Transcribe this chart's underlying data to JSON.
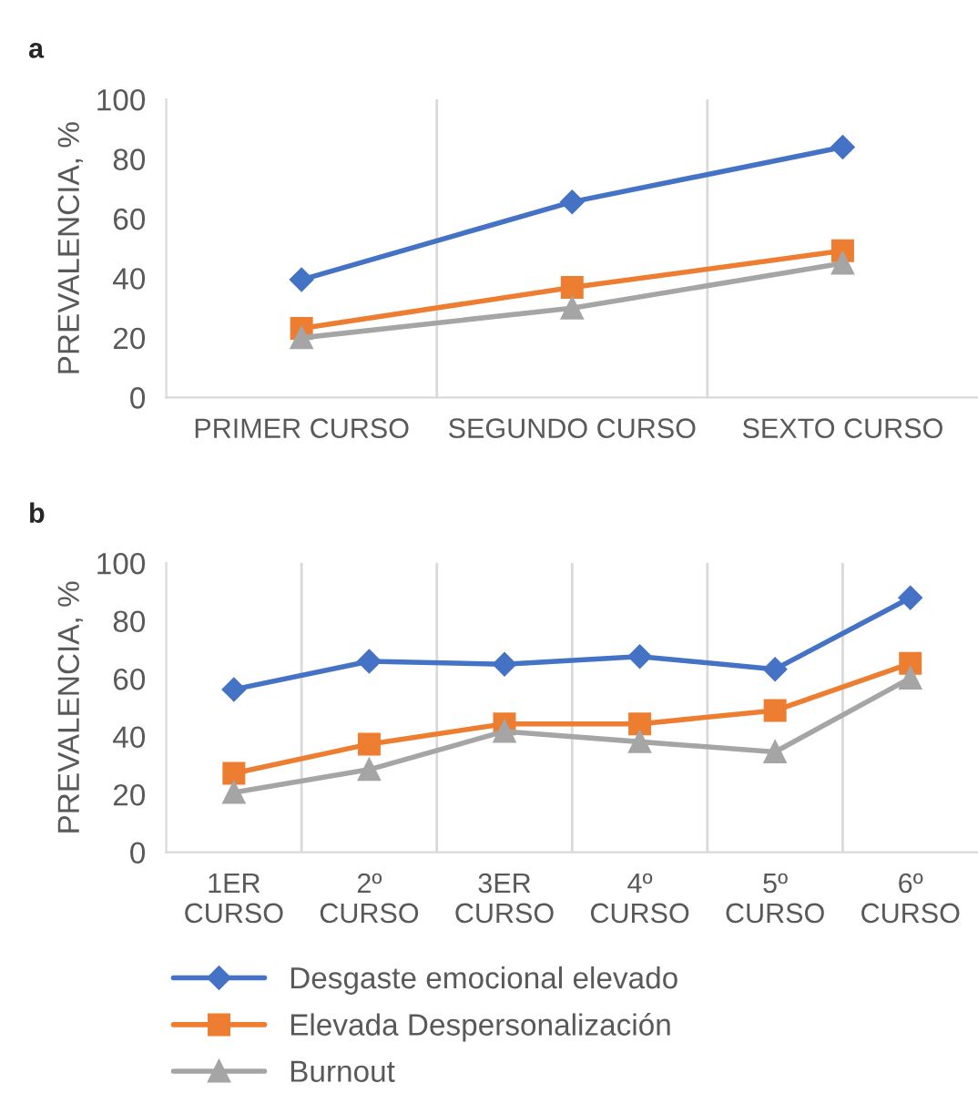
{
  "chart_data": [
    {
      "type": "line",
      "annotations": [
        "a"
      ],
      "ylabel": "PREVALENCIA, %",
      "categories": [
        "PRIMER CURSO",
        "SEGUNDO CURSO",
        "SEXTO CURSO"
      ],
      "ylim": [
        0,
        100
      ],
      "yticks": [
        0,
        20,
        40,
        60,
        80,
        100
      ],
      "grid": "x",
      "legend": false,
      "series": [
        {
          "color": "#4472c4",
          "marker": "diamond",
          "values": [
            39.5,
            65.6,
            84
          ]
        },
        {
          "color": "#ed7d31",
          "marker": "square",
          "values": [
            23.2,
            36.9,
            49.2
          ]
        },
        {
          "color": "#a5a5a5",
          "marker": "triangle",
          "values": [
            20,
            30,
            45
          ]
        }
      ]
    },
    {
      "type": "line",
      "annotations": [
        "b"
      ],
      "ylabel": "PREVALENCIA, %",
      "categories": [
        "1ER\nCURSO",
        "2º\nCURSO",
        "3ER\nCURSO",
        "4º\nCURSO",
        "5º\nCURSO",
        "6º\nCURSO"
      ],
      "ylim": [
        0,
        100
      ],
      "yticks": [
        0,
        20,
        40,
        60,
        80,
        100
      ],
      "grid": "x",
      "legend": "bottom",
      "series": [
        {
          "name": "Desgaste emocional elevado",
          "color": "#4472c4",
          "marker": "diamond",
          "values": [
            56.3,
            66,
            65,
            67.7,
            63.3,
            88
          ]
        },
        {
          "name": "Elevada Despersonalización",
          "color": "#ed7d31",
          "marker": "square",
          "values": [
            27.3,
            37.4,
            44.4,
            44.4,
            49,
            65.3
          ]
        },
        {
          "name": "Burnout",
          "color": "#a5a5a5",
          "marker": "triangle",
          "values": [
            20.7,
            28.6,
            41.8,
            38.2,
            34.7,
            60.2
          ]
        }
      ]
    }
  ]
}
